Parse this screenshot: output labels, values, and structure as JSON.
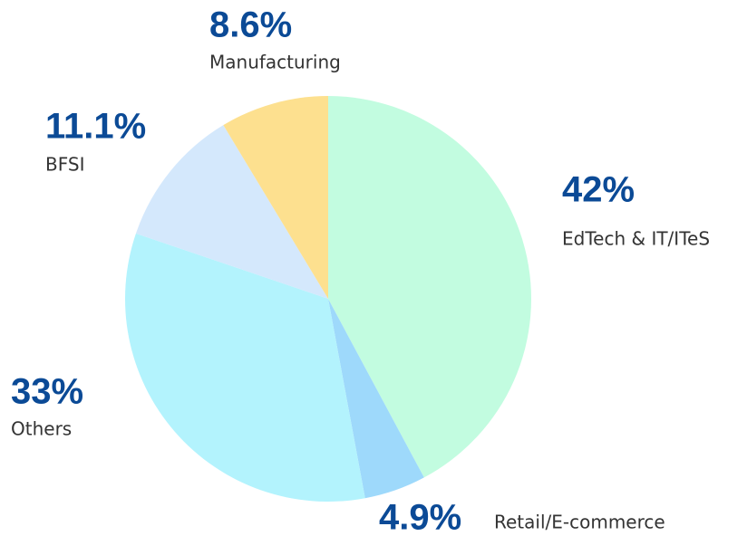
{
  "chart_data": {
    "type": "pie",
    "categories": [
      "EdTech & IT/ITeS",
      "Retail/E-commerce",
      "Others",
      "BFSI",
      "Manufacturing"
    ],
    "values": [
      42,
      4.9,
      33,
      11.1,
      8.6
    ],
    "value_labels": [
      "42%",
      "4.9%",
      "33%",
      "11.1%",
      "8.6%"
    ],
    "colors": [
      "#c2fce0",
      "#9ed9fb",
      "#b3f3fd",
      "#d4e8fc",
      "#fde08f"
    ]
  }
}
